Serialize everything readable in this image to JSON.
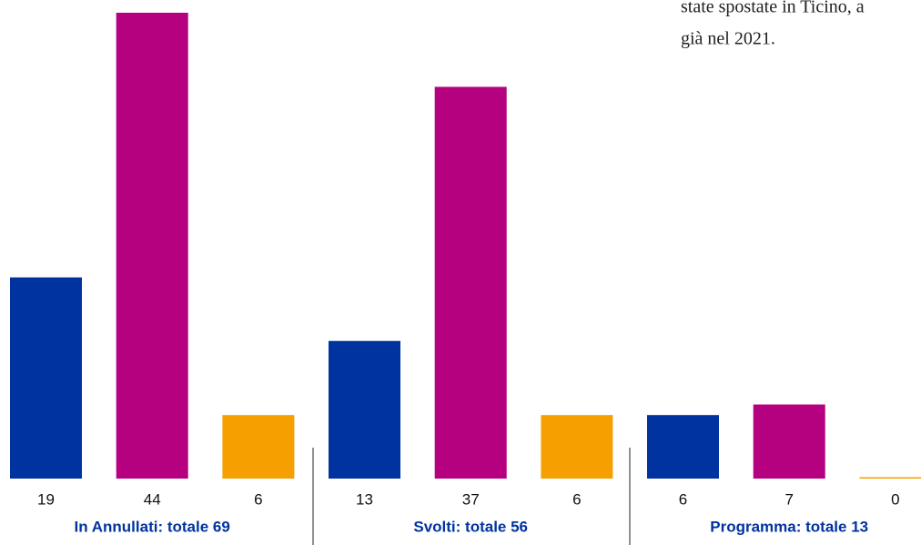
{
  "chart_data": {
    "type": "bar",
    "categories": [
      "In Annullati: totale 69",
      "Svolti: totale 56",
      "Programma: totale 13"
    ],
    "series": [
      {
        "color": "#0033a0",
        "values": [
          19,
          13,
          6
        ]
      },
      {
        "color": "#b5007f",
        "values": [
          44,
          37,
          7
        ]
      },
      {
        "color": "#f5a000",
        "values": [
          6,
          6,
          0
        ]
      }
    ],
    "ylim": [
      0,
      44
    ],
    "annotations": [
      "state spostate in Ticino, a",
      "già nel 2021."
    ]
  }
}
